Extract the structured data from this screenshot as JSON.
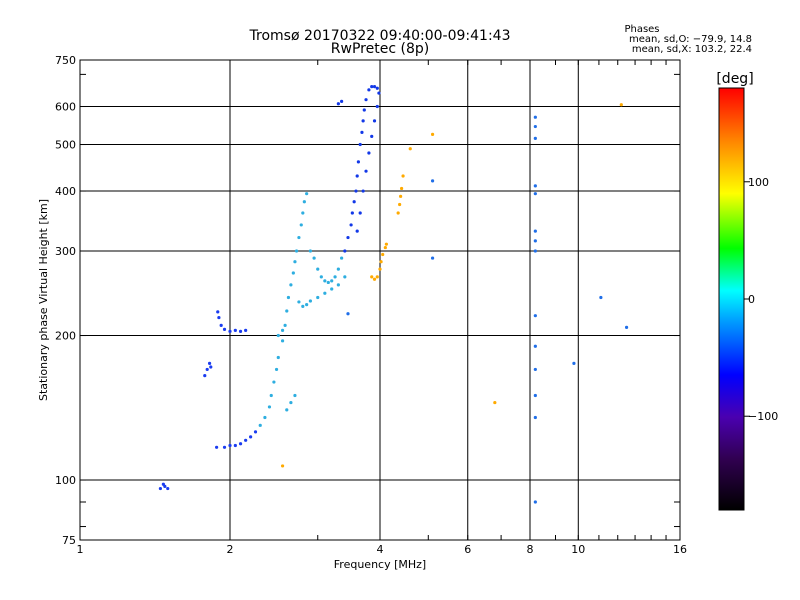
{
  "chart_data": {
    "type": "scatter",
    "title": "Tromsø 20170322 09:40:00-09:41:43",
    "subtitle": "RwPretec (8p)",
    "xlabel": "Frequency [MHz]",
    "ylabel": "Stationary phase Virtual Height [km]",
    "x_scale": "log",
    "y_scale": "log",
    "xlim": [
      1,
      16
    ],
    "ylim": [
      75,
      750
    ],
    "x_ticks": [
      1,
      2,
      4,
      6,
      8,
      10,
      16
    ],
    "x_tick_labels": [
      "1",
      "2",
      "4",
      "6",
      "8",
      "10",
      "16"
    ],
    "y_ticks": [
      75,
      100,
      200,
      300,
      400,
      500,
      600,
      750
    ],
    "y_tick_labels": [
      "75",
      "100",
      "200",
      "300",
      "400",
      "500",
      "600",
      "750"
    ],
    "grid": true,
    "grid_x": [
      2,
      4,
      6,
      8,
      10
    ],
    "grid_y": [
      100,
      200,
      300,
      400,
      500,
      600
    ],
    "stats": {
      "heading": "Phases",
      "line_o": "mean, sd,O: −79.9, 14.8",
      "line_x": "mean, sd,X: 103.2, 22.4"
    },
    "colorbar": {
      "label": "[deg]",
      "range": [
        -180,
        180
      ],
      "ticks": [
        100,
        0,
        -100
      ],
      "tick_labels": [
        "100",
        "0",
        "−100"
      ],
      "colors": [
        "#000000",
        "#300050",
        "#4a00b0",
        "#0000ff",
        "#00a0ff",
        "#00ffff",
        "#00ff00",
        "#ffff00",
        "#ff8000",
        "#ff0000"
      ]
    },
    "series": [
      {
        "points": [
          [
            1.45,
            96
          ],
          [
            1.47,
            98
          ],
          [
            1.48,
            97
          ],
          [
            1.5,
            96
          ],
          [
            1.78,
            165
          ],
          [
            1.8,
            170
          ],
          [
            1.82,
            175
          ],
          [
            1.83,
            172
          ],
          [
            1.89,
            224
          ],
          [
            1.9,
            218
          ],
          [
            1.92,
            210
          ],
          [
            1.95,
            206
          ],
          [
            2.0,
            204
          ],
          [
            2.05,
            205
          ],
          [
            2.1,
            204
          ],
          [
            2.15,
            205
          ],
          [
            1.88,
            117
          ],
          [
            1.95,
            117
          ],
          [
            2.0,
            118
          ],
          [
            2.05,
            118
          ],
          [
            2.1,
            119
          ],
          [
            2.15,
            121
          ],
          [
            2.2,
            123
          ],
          [
            2.25,
            126
          ]
        ]
      },
      {
        "points": [
          [
            2.3,
            130
          ],
          [
            2.35,
            135
          ],
          [
            2.4,
            142
          ],
          [
            2.42,
            150
          ],
          [
            2.45,
            160
          ],
          [
            2.48,
            170
          ],
          [
            2.5,
            180
          ],
          [
            2.55,
            195
          ],
          [
            2.58,
            210
          ],
          [
            2.6,
            225
          ],
          [
            2.62,
            240
          ],
          [
            2.65,
            255
          ],
          [
            2.68,
            270
          ],
          [
            2.7,
            285
          ],
          [
            2.72,
            300
          ],
          [
            2.75,
            320
          ],
          [
            2.78,
            340
          ],
          [
            2.8,
            360
          ],
          [
            2.82,
            380
          ],
          [
            2.85,
            395
          ],
          [
            2.9,
            300
          ],
          [
            2.95,
            290
          ],
          [
            3.0,
            275
          ],
          [
            3.05,
            265
          ],
          [
            3.1,
            260
          ],
          [
            3.15,
            258
          ],
          [
            3.2,
            260
          ],
          [
            3.25,
            265
          ],
          [
            3.3,
            275
          ],
          [
            3.35,
            290
          ],
          [
            2.75,
            235
          ],
          [
            2.8,
            230
          ],
          [
            2.85,
            232
          ],
          [
            2.9,
            236
          ],
          [
            3.0,
            240
          ],
          [
            3.1,
            245
          ],
          [
            3.2,
            250
          ],
          [
            3.3,
            255
          ],
          [
            3.4,
            265
          ],
          [
            2.6,
            140
          ],
          [
            2.65,
            145
          ],
          [
            2.7,
            150
          ],
          [
            2.5,
            200
          ],
          [
            2.55,
            205
          ]
        ]
      },
      {
        "points": [
          [
            3.4,
            300
          ],
          [
            3.45,
            320
          ],
          [
            3.5,
            340
          ],
          [
            3.52,
            360
          ],
          [
            3.55,
            380
          ],
          [
            3.58,
            400
          ],
          [
            3.6,
            430
          ],
          [
            3.62,
            460
          ],
          [
            3.65,
            500
          ],
          [
            3.68,
            530
          ],
          [
            3.7,
            560
          ],
          [
            3.72,
            590
          ],
          [
            3.75,
            620
          ],
          [
            3.8,
            650
          ],
          [
            3.85,
            660
          ],
          [
            3.9,
            660
          ],
          [
            3.95,
            655
          ],
          [
            3.98,
            640
          ],
          [
            3.95,
            600
          ],
          [
            3.9,
            560
          ],
          [
            3.85,
            520
          ],
          [
            3.8,
            480
          ],
          [
            3.75,
            440
          ],
          [
            3.7,
            400
          ],
          [
            3.65,
            360
          ],
          [
            3.6,
            330
          ],
          [
            3.3,
            608
          ],
          [
            3.35,
            615
          ]
        ]
      },
      {
        "points": [
          [
            3.95,
            265
          ],
          [
            4.0,
            275
          ],
          [
            4.02,
            285
          ],
          [
            4.05,
            295
          ],
          [
            4.1,
            305
          ],
          [
            4.12,
            310
          ],
          [
            3.85,
            265
          ],
          [
            3.9,
            262
          ],
          [
            4.35,
            360
          ],
          [
            4.38,
            375
          ],
          [
            4.4,
            390
          ],
          [
            4.42,
            405
          ],
          [
            4.45,
            430
          ],
          [
            4.6,
            490
          ],
          [
            5.1,
            525
          ],
          [
            6.8,
            145
          ],
          [
            2.55,
            107
          ],
          [
            12.2,
            605
          ]
        ]
      },
      {
        "points": [
          [
            8.2,
            570
          ],
          [
            8.2,
            545
          ],
          [
            8.2,
            515
          ],
          [
            8.2,
            410
          ],
          [
            8.2,
            395
          ],
          [
            8.2,
            330
          ],
          [
            8.2,
            315
          ],
          [
            8.2,
            300
          ],
          [
            8.2,
            220
          ],
          [
            8.2,
            190
          ],
          [
            8.2,
            170
          ],
          [
            8.2,
            150
          ],
          [
            8.2,
            135
          ],
          [
            8.2,
            90
          ],
          [
            5.1,
            290
          ],
          [
            9.8,
            175
          ],
          [
            11.1,
            240
          ],
          [
            12.5,
            208
          ],
          [
            3.45,
            222
          ],
          [
            5.1,
            420
          ]
        ]
      }
    ]
  }
}
